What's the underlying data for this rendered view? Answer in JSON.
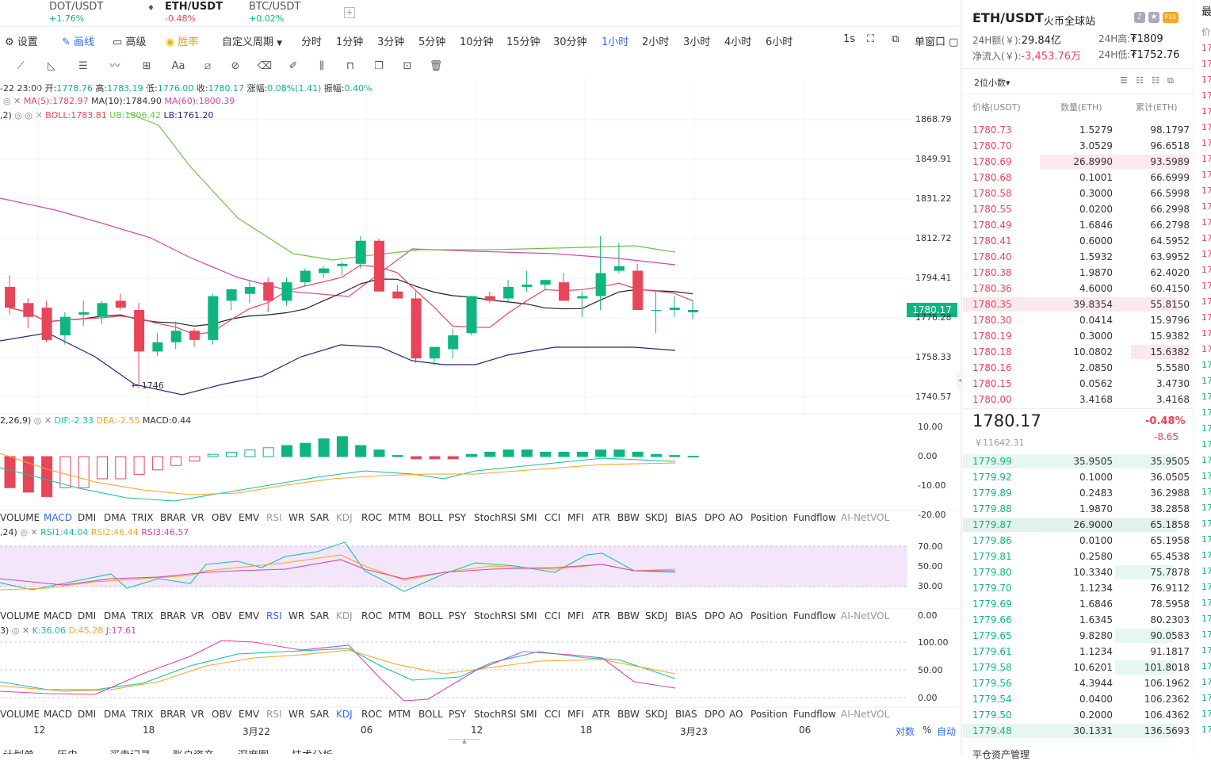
{
  "tabs": [
    {
      "name": "DOT/USDT",
      "change": "+1.76%",
      "dir": "up"
    },
    {
      "name": "ETH/USDT",
      "change": "-0.48%",
      "dir": "dn"
    },
    {
      "name": "BTC/USDT",
      "change": "+0.02%",
      "dir": "up"
    }
  ],
  "toolbar": {
    "settings": "设置",
    "draw": "画线",
    "advanced": "高级",
    "winrate": "胜率",
    "custom_period": "自定义周期",
    "periods": [
      "分时",
      "1分钟",
      "3分钟",
      "5分钟",
      "10分钟",
      "15分钟",
      "30分钟",
      "1小时",
      "2小时",
      "3小时",
      "4小时",
      "6小时"
    ],
    "active_period": "1小时",
    "interval_1s": "1s",
    "single_window": "单窗口"
  },
  "ohlc": {
    "date": "-22 23:00",
    "open_label": "开:",
    "open": "1778.76",
    "high_label": "高:",
    "high": "1783.19",
    "low_label": "低:",
    "low": "1776.00",
    "close_label": "收:",
    "close": "1780.17",
    "change_label": "涨幅:",
    "change": "0.08%(1.41)",
    "amp_label": "振幅:",
    "amp": "0.40%"
  },
  "ma_legend": {
    "ma5": "MA(5):1782.97",
    "ma10": "MA(10):1784.90",
    "ma60": "MA(60):1800.39"
  },
  "boll_legend": {
    "prefix": ",2)",
    "boll": "BOLL:1783.81",
    "ub": "UB:1806.42",
    "lb": "LB:1761.20"
  },
  "price_ticks": [
    "1868.79",
    "1849.91",
    "1831.22",
    "1812.72",
    "1794.41",
    "1776.28",
    "1758.33",
    "1740.57"
  ],
  "last_price": "1780.17",
  "low_marker": "← 1746",
  "macd_legend": {
    "prefix": "2,26,9)",
    "dif": "DIF:-2.33",
    "dea": "DEA:-2.55",
    "macd": "MACD:0.44"
  },
  "macd_ticks": [
    "10.00",
    "0.00",
    "-10.00",
    "-20.00"
  ],
  "rsi_legend": {
    "prefix": ",24)",
    "rsi1": "RSI1:44.04",
    "rsi2": "RSI2:46.44",
    "rsi3": "RSI3:46.57"
  },
  "rsi_ticks": [
    "70.00",
    "50.00",
    "30.00",
    "0.00"
  ],
  "kdj_legend": {
    "prefix": "3)",
    "k": "K:36.06",
    "d": "D:45.28",
    "j": "J:17.61"
  },
  "kdj_ticks": [
    "100.00",
    "50.00",
    "0.00"
  ],
  "indicators": [
    "VOLUME",
    "MACD",
    "DMI",
    "DMA",
    "TRIX",
    "BRAR",
    "VR",
    "OBV",
    "EMV",
    "RSI",
    "WR",
    "SAR",
    "KDJ",
    "ROC",
    "MTM",
    "BOLL",
    "PSY",
    "StochRSI",
    "SMI",
    "CCI",
    "MFI",
    "ATR",
    "BBW",
    "SKDJ",
    "BIAS",
    "DPO",
    "AO",
    "Position",
    "Fundflow",
    "AI-NetVOL"
  ],
  "x_labels": [
    "12",
    "18",
    "3月22",
    "06",
    "12",
    "18",
    "3月23",
    "06"
  ],
  "axis_opts": {
    "log": "对数",
    "pct": "%",
    "auto": "自动"
  },
  "bottom_tabs": [
    "计划单",
    "历史",
    "买卖记录",
    "账户资产",
    "深度图",
    "技术分析"
  ],
  "right": {
    "pair": "ETH/USDT",
    "exchange": "火币全球站",
    "badge": "F10",
    "vol_label": "24H额(￥):",
    "vol": "29.84亿",
    "high_label": "24H高:",
    "high": "₮1809",
    "inflow_label": "净流入(￥):",
    "inflow": "-3,453.76万",
    "low_label": "24H低:",
    "low": "₮1752.76",
    "decimals": "2位小数",
    "col_price": "价格(USDT)",
    "col_amount": "数量(ETH)",
    "col_total": "累计(ETH)",
    "mid_price": "1780.17",
    "mid_cny": "￥11642.31",
    "mid_pct": "-0.48%",
    "mid_chg": "-8.65",
    "footer": "平仓资产管理"
  },
  "asks": [
    [
      "1780.73",
      "1.5279",
      "98.1797"
    ],
    [
      "1780.70",
      "3.0529",
      "96.6518"
    ],
    [
      "1780.69",
      "26.8990",
      "93.5989"
    ],
    [
      "1780.68",
      "0.1001",
      "66.6999"
    ],
    [
      "1780.58",
      "0.3000",
      "66.5998"
    ],
    [
      "1780.55",
      "0.0200",
      "66.2998"
    ],
    [
      "1780.49",
      "1.6846",
      "66.2798"
    ],
    [
      "1780.41",
      "0.6000",
      "64.5952"
    ],
    [
      "1780.40",
      "1.5932",
      "63.9952"
    ],
    [
      "1780.38",
      "1.9870",
      "62.4020"
    ],
    [
      "1780.36",
      "4.6000",
      "60.4150"
    ],
    [
      "1780.35",
      "39.8354",
      "55.8150"
    ],
    [
      "1780.30",
      "0.0414",
      "15.9796"
    ],
    [
      "1780.19",
      "0.3000",
      "15.9382"
    ],
    [
      "1780.18",
      "10.0802",
      "15.6382"
    ],
    [
      "1780.16",
      "2.0850",
      "5.5580"
    ],
    [
      "1780.15",
      "0.0562",
      "3.4730"
    ],
    [
      "1780.00",
      "3.4168",
      "3.4168"
    ]
  ],
  "bids": [
    [
      "1779.99",
      "35.9505",
      "35.9505"
    ],
    [
      "1779.92",
      "0.1000",
      "36.0505"
    ],
    [
      "1779.89",
      "0.2483",
      "36.2988"
    ],
    [
      "1779.88",
      "1.9870",
      "38.2858"
    ],
    [
      "1779.87",
      "26.9000",
      "65.1858"
    ],
    [
      "1779.86",
      "0.0100",
      "65.1958"
    ],
    [
      "1779.81",
      "0.2580",
      "65.4538"
    ],
    [
      "1779.80",
      "10.3340",
      "75.7878"
    ],
    [
      "1779.70",
      "1.1234",
      "76.9112"
    ],
    [
      "1779.69",
      "1.6846",
      "78.5958"
    ],
    [
      "1779.66",
      "1.6345",
      "80.2303"
    ],
    [
      "1779.65",
      "9.8280",
      "90.0583"
    ],
    [
      "1779.61",
      "1.1234",
      "91.1817"
    ],
    [
      "1779.58",
      "10.6201",
      "101.8018"
    ],
    [
      "1779.56",
      "4.3944",
      "106.1962"
    ],
    [
      "1779.54",
      "0.0400",
      "106.2362"
    ],
    [
      "1779.50",
      "0.2000",
      "106.4362"
    ],
    [
      "1779.48",
      "30.1331",
      "136.5693"
    ]
  ],
  "far_right": {
    "top": "最",
    "col": "价"
  },
  "chart_data": {
    "type": "candlestick",
    "interval": "1小时",
    "ylim": [
      1735,
      1880
    ],
    "candles": [
      [
        1790,
        1795,
        1778,
        1781
      ],
      [
        1783,
        1785,
        1772,
        1777
      ],
      [
        1781,
        1784,
        1766,
        1767
      ],
      [
        1769,
        1779,
        1765,
        1777
      ],
      [
        1778,
        1784,
        1773,
        1779
      ],
      [
        1777,
        1784,
        1774,
        1783
      ],
      [
        1784,
        1787,
        1780,
        1781
      ],
      [
        1780,
        1783,
        1746,
        1762
      ],
      [
        1762,
        1770,
        1760,
        1766
      ],
      [
        1766,
        1775,
        1763,
        1771
      ],
      [
        1771,
        1772,
        1764,
        1767
      ],
      [
        1767,
        1787,
        1765,
        1786
      ],
      [
        1784,
        1789,
        1780,
        1789
      ],
      [
        1787,
        1793,
        1783,
        1790
      ],
      [
        1792,
        1794,
        1779,
        1784
      ],
      [
        1784,
        1794,
        1782,
        1792
      ],
      [
        1792,
        1798,
        1790,
        1797
      ],
      [
        1796,
        1799,
        1794,
        1798
      ],
      [
        1799,
        1801,
        1795,
        1800
      ],
      [
        1800,
        1812,
        1798,
        1810
      ],
      [
        1810,
        1811,
        1788,
        1788
      ],
      [
        1788,
        1791,
        1785,
        1785
      ],
      [
        1785,
        1788,
        1757,
        1759
      ],
      [
        1759,
        1764,
        1756,
        1764
      ],
      [
        1763,
        1772,
        1759,
        1769
      ],
      [
        1770,
        1786,
        1769,
        1786
      ],
      [
        1786,
        1788,
        1783,
        1784
      ],
      [
        1785,
        1793,
        1783,
        1790
      ],
      [
        1790,
        1797,
        1788,
        1791
      ],
      [
        1791,
        1793,
        1789,
        1793
      ],
      [
        1792,
        1796,
        1784,
        1784
      ],
      [
        1785,
        1788,
        1777,
        1786
      ],
      [
        1786,
        1812,
        1780,
        1796
      ],
      [
        1797,
        1809,
        1796,
        1799
      ],
      [
        1797,
        1800,
        1780,
        1780
      ],
      [
        1780,
        1788,
        1770,
        1780
      ],
      [
        1780,
        1786,
        1777,
        1781
      ],
      [
        1779,
        1784,
        1776,
        1780
      ]
    ]
  }
}
